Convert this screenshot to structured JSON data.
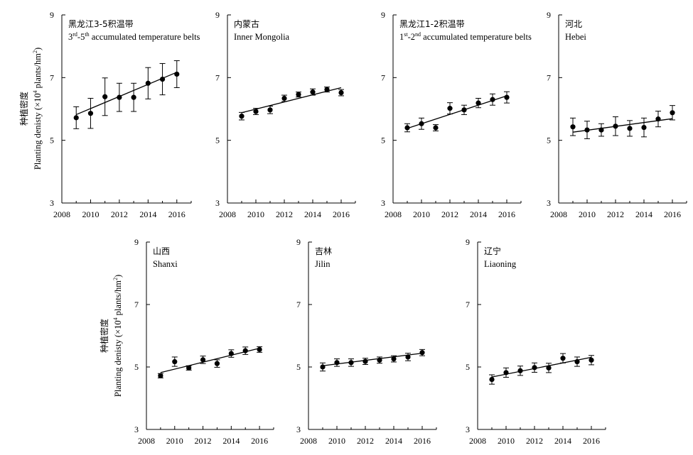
{
  "y_axis_label": {
    "cn": "种植密度",
    "en_prefix": "Planting denisty (×10",
    "en_exp": "4",
    "en_mid": " plants/hm",
    "en_exp2": "2",
    "en_suffix": ")"
  },
  "chart_data": [
    {
      "type": "scatter",
      "title_cn": "黑龙江3-5积温带",
      "title_en_parts": [
        {
          "t": "3",
          "sup": false
        },
        {
          "t": "rd",
          "sup": true
        },
        {
          "t": "-5",
          "sup": false
        },
        {
          "t": "th",
          "sup": true
        },
        {
          "t": " accumulated temperature belts",
          "sup": false
        }
      ],
      "x": [
        2009,
        2010,
        2011,
        2012,
        2013,
        2014,
        2015,
        2016
      ],
      "y": [
        5.72,
        5.86,
        6.39,
        6.37,
        6.37,
        6.82,
        6.95,
        7.11
      ],
      "err": [
        0.35,
        0.48,
        0.6,
        0.45,
        0.45,
        0.5,
        0.5,
        0.43
      ],
      "trend": [
        5.82,
        7.17
      ],
      "xlim": [
        2008,
        2017
      ],
      "ylim": [
        3,
        9
      ],
      "xticks": [
        "2008",
        "2010",
        "2012",
        "2014",
        "2016"
      ],
      "yticks": [
        "3",
        "5",
        "7",
        "9"
      ]
    },
    {
      "type": "scatter",
      "title_cn": "内蒙古",
      "title_en_parts": [
        {
          "t": "Inner Mongolia",
          "sup": false
        }
      ],
      "x": [
        2009,
        2010,
        2011,
        2012,
        2013,
        2014,
        2015,
        2016
      ],
      "y": [
        5.77,
        5.92,
        5.97,
        6.34,
        6.46,
        6.54,
        6.62,
        6.52
      ],
      "err": [
        0.12,
        0.1,
        0.12,
        0.1,
        0.08,
        0.1,
        0.08,
        0.1
      ],
      "trend": [
        5.88,
        6.68
      ],
      "xlim": [
        2008,
        2017
      ],
      "ylim": [
        3,
        9
      ],
      "xticks": [
        "2008",
        "2010",
        "2012",
        "2014",
        "2016"
      ],
      "yticks": [
        "3",
        "5",
        "7",
        "9"
      ]
    },
    {
      "type": "scatter",
      "title_cn": "黑龙江1-2积温带",
      "title_en_parts": [
        {
          "t": "1",
          "sup": false
        },
        {
          "t": "st",
          "sup": true
        },
        {
          "t": "-2",
          "sup": false
        },
        {
          "t": "nd",
          "sup": true
        },
        {
          "t": " accumulated temperature belts",
          "sup": false
        }
      ],
      "x": [
        2009,
        2010,
        2011,
        2012,
        2013,
        2014,
        2015,
        2016
      ],
      "y": [
        5.4,
        5.53,
        5.4,
        6.02,
        5.97,
        6.19,
        6.3,
        6.37
      ],
      "err": [
        0.13,
        0.18,
        0.1,
        0.18,
        0.15,
        0.15,
        0.18,
        0.18
      ],
      "trend": [
        5.38,
        6.42
      ],
      "xlim": [
        2008,
        2017
      ],
      "ylim": [
        3,
        9
      ],
      "xticks": [
        "2008",
        "2010",
        "2012",
        "2014",
        "2016"
      ],
      "yticks": [
        "3",
        "5",
        "7",
        "9"
      ]
    },
    {
      "type": "scatter",
      "title_cn": "河北",
      "title_en_parts": [
        {
          "t": "Hebei",
          "sup": false
        }
      ],
      "x": [
        2009,
        2010,
        2011,
        2012,
        2013,
        2014,
        2015,
        2016
      ],
      "y": [
        5.43,
        5.33,
        5.33,
        5.45,
        5.38,
        5.41,
        5.68,
        5.88
      ],
      "err": [
        0.28,
        0.28,
        0.2,
        0.3,
        0.25,
        0.3,
        0.25,
        0.23
      ],
      "trend": [
        5.26,
        5.69
      ],
      "xlim": [
        2008,
        2017
      ],
      "ylim": [
        3,
        9
      ],
      "xticks": [
        "2008",
        "2010",
        "2012",
        "2014",
        "2016"
      ],
      "yticks": [
        "3",
        "5",
        "7",
        "9"
      ]
    },
    {
      "type": "scatter",
      "title_cn": "山西",
      "title_en_parts": [
        {
          "t": "Shanxi",
          "sup": false
        }
      ],
      "x": [
        2009,
        2010,
        2011,
        2012,
        2013,
        2014,
        2015,
        2016
      ],
      "y": [
        4.72,
        5.17,
        4.97,
        5.23,
        5.11,
        5.43,
        5.52,
        5.56
      ],
      "err": [
        0.07,
        0.15,
        0.07,
        0.12,
        0.12,
        0.12,
        0.12,
        0.09
      ],
      "trend": [
        4.82,
        5.6
      ],
      "xlim": [
        2008,
        2017
      ],
      "ylim": [
        3,
        9
      ],
      "xticks": [
        "2008",
        "2010",
        "2012",
        "2014",
        "2016"
      ],
      "yticks": [
        "3",
        "5",
        "7",
        "9"
      ]
    },
    {
      "type": "scatter",
      "title_cn": "吉林",
      "title_en_parts": [
        {
          "t": "Jilin",
          "sup": false
        }
      ],
      "x": [
        2009,
        2010,
        2011,
        2012,
        2013,
        2014,
        2015,
        2016
      ],
      "y": [
        5.0,
        5.14,
        5.14,
        5.18,
        5.22,
        5.26,
        5.32,
        5.46
      ],
      "err": [
        0.13,
        0.12,
        0.12,
        0.1,
        0.1,
        0.1,
        0.12,
        0.1
      ],
      "trend": [
        5.04,
        5.44
      ],
      "xlim": [
        2008,
        2017
      ],
      "ylim": [
        3,
        9
      ],
      "xticks": [
        "2008",
        "2010",
        "2012",
        "2014",
        "2016"
      ],
      "yticks": [
        "3",
        "5",
        "7",
        "9"
      ]
    },
    {
      "type": "scatter",
      "title_cn": "辽宁",
      "title_en_parts": [
        {
          "t": "Liaoning",
          "sup": false
        }
      ],
      "x": [
        2009,
        2010,
        2011,
        2012,
        2013,
        2014,
        2015,
        2016
      ],
      "y": [
        4.6,
        4.82,
        4.88,
        4.98,
        4.97,
        5.28,
        5.17,
        5.22
      ],
      "err": [
        0.15,
        0.15,
        0.15,
        0.15,
        0.15,
        0.15,
        0.15,
        0.15
      ],
      "trend": [
        4.68,
        5.31
      ],
      "xlim": [
        2008,
        2017
      ],
      "ylim": [
        3,
        9
      ],
      "xticks": [
        "2008",
        "2010",
        "2012",
        "2014",
        "2016"
      ],
      "yticks": [
        "3",
        "5",
        "7",
        "9"
      ]
    }
  ]
}
